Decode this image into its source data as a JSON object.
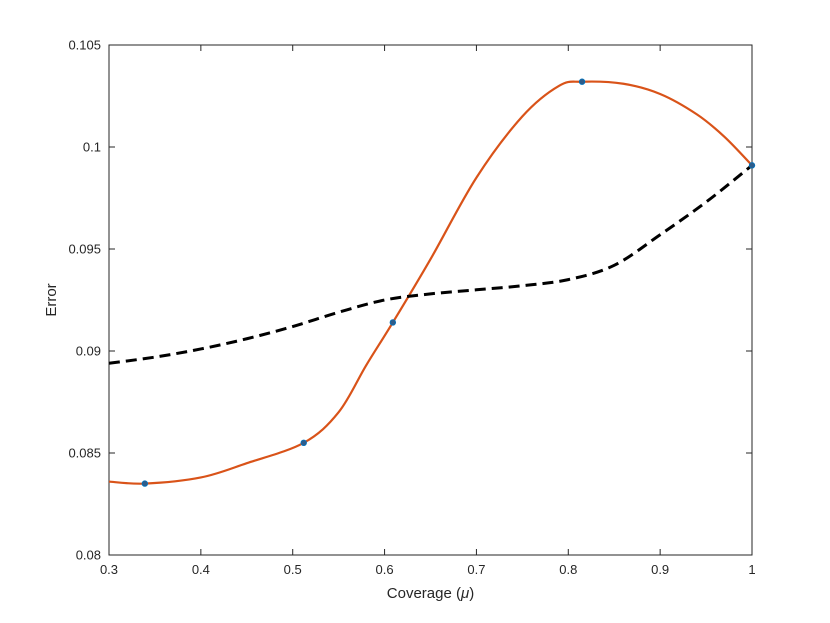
{
  "chart_data": {
    "type": "line",
    "title": "",
    "xlabel": "Coverage (",
    "xlabel_symbol": "μ",
    "xlabel_suffix": ")",
    "ylabel": "Error",
    "xlim": [
      0.3,
      1.0
    ],
    "ylim": [
      0.08,
      0.105
    ],
    "xticks": [
      0.3,
      0.4,
      0.5,
      0.6,
      0.7,
      0.8,
      0.9,
      1.0
    ],
    "xtick_labels": [
      "0.3",
      "0.4",
      "0.5",
      "0.6",
      "0.7",
      "0.8",
      "0.9",
      "1"
    ],
    "yticks": [
      0.08,
      0.085,
      0.09,
      0.095,
      0.1,
      0.105
    ],
    "ytick_labels": [
      "0.08",
      "0.085",
      "0.09",
      "0.095",
      "0.1",
      "0.105"
    ],
    "grid": false,
    "series": [
      {
        "style": "solid",
        "color": "#D95319",
        "x": [
          0.3,
          0.339,
          0.4,
          0.45,
          0.512,
          0.55,
          0.58,
          0.609,
          0.65,
          0.7,
          0.75,
          0.79,
          0.815,
          0.86,
          0.9,
          0.94,
          0.97,
          1.0
        ],
        "y": [
          0.0836,
          0.0835,
          0.0838,
          0.0845,
          0.0855,
          0.087,
          0.0893,
          0.0914,
          0.0945,
          0.0985,
          0.1015,
          0.103,
          0.1032,
          0.1031,
          0.1026,
          0.1016,
          0.1005,
          0.0991
        ]
      },
      {
        "style": "dashed",
        "color": "#000000",
        "x": [
          0.3,
          0.35,
          0.4,
          0.45,
          0.5,
          0.55,
          0.6,
          0.65,
          0.7,
          0.75,
          0.8,
          0.85,
          0.9,
          0.95,
          1.0
        ],
        "y": [
          0.0894,
          0.0897,
          0.0901,
          0.0906,
          0.0912,
          0.0919,
          0.0925,
          0.0928,
          0.093,
          0.0932,
          0.0935,
          0.0942,
          0.0957,
          0.0973,
          0.0991
        ]
      }
    ],
    "markers": {
      "color": "#0072BD",
      "x": [
        0.339,
        0.512,
        0.609,
        0.815,
        1.0
      ],
      "y": [
        0.0835,
        0.0855,
        0.0914,
        0.1032,
        0.0991
      ]
    }
  }
}
